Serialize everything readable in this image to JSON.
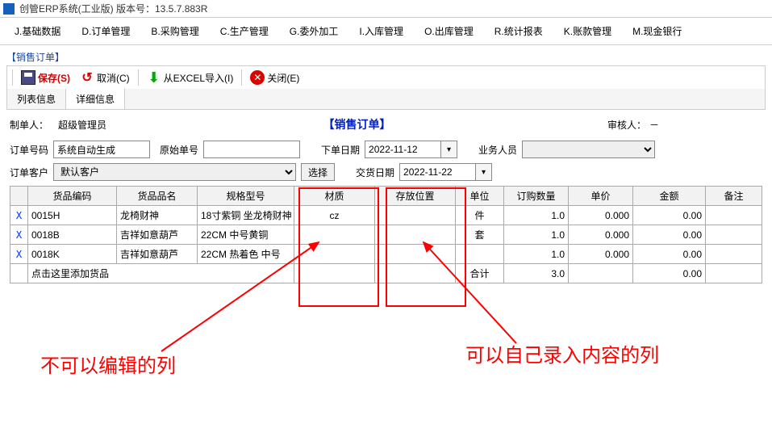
{
  "window": {
    "title": "创管ERP系统(工业版)  版本号：13.5.7.883R"
  },
  "menubar": [
    "J.基础数据",
    "D.订单管理",
    "B.采购管理",
    "C.生产管理",
    "G.委外加工",
    "I.入库管理",
    "O.出库管理",
    "R.统计报表",
    "K.账款管理",
    "M.现金银行"
  ],
  "frame": {
    "title": "【销售订单】"
  },
  "toolbar": {
    "save": "保存(S)",
    "cancel": "取消(C)",
    "import": "从EXCEL导入(I)",
    "close": "关闭(E)"
  },
  "tabs": {
    "list": "列表信息",
    "detail": "详细信息"
  },
  "header": {
    "maker_label": "制单人：",
    "maker_value": "超级管理员",
    "page_title": "【销售订单】",
    "auditor_label": "审核人：",
    "auditor_value": "－"
  },
  "form": {
    "order_no_label": "订单号码",
    "order_no_value": "系统自动生成",
    "orig_no_label": "原始单号",
    "orig_no_value": "",
    "order_date_label": "下单日期",
    "order_date_value": "2022-11-12",
    "sales_person_label": "业务人员",
    "sales_person_value": "",
    "customer_label": "订单客户",
    "customer_value": "默认客户",
    "select_btn": "选择",
    "delivery_date_label": "交货日期",
    "delivery_date_value": "2022-11-22"
  },
  "grid": {
    "columns": [
      "",
      "货品编码",
      "货品品名",
      "规格型号",
      "材质",
      "存放位置",
      "单位",
      "订购数量",
      "单价",
      "金额",
      "备注"
    ],
    "rows": [
      {
        "mark": "X",
        "code": "0015H",
        "name": "龙椅财神",
        "spec": "18寸紫铜 坐龙椅财神",
        "material": "cz",
        "loc": "",
        "unit": "件",
        "qty": "1.0",
        "price": "0.000",
        "amount": "0.00",
        "remark": ""
      },
      {
        "mark": "X",
        "code": "0018B",
        "name": "吉祥如意葫芦",
        "spec": "22CM 中号黄铜",
        "material": "",
        "loc": "",
        "unit": "套",
        "qty": "1.0",
        "price": "0.000",
        "amount": "0.00",
        "remark": ""
      },
      {
        "mark": "X",
        "code": "0018K",
        "name": "吉祥如意葫芦",
        "spec": "22CM 热着色 中号",
        "material": "",
        "loc": "",
        "unit": "",
        "qty": "1.0",
        "price": "0.000",
        "amount": "0.00",
        "remark": ""
      }
    ],
    "add_row_text": "点击这里添加货品",
    "total_label": "合计",
    "total_qty": "3.0",
    "total_amount": "0.00"
  },
  "annotations": {
    "left": "不可以编辑的列",
    "right": "可以自己录入内容的列"
  },
  "colors": {
    "annotation": "#ff0000",
    "link_blue": "#0020c0",
    "save_red": "#cc0000"
  }
}
